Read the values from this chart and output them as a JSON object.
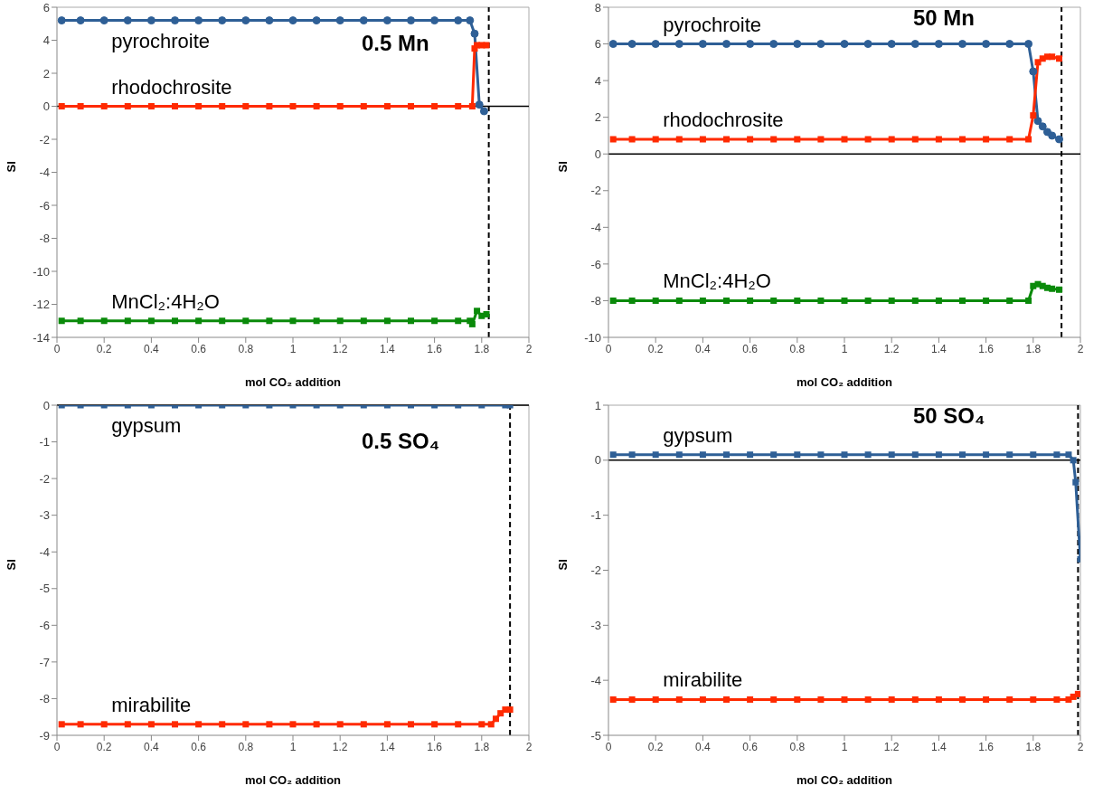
{
  "chart_data": [
    {
      "type": "line",
      "title": "0.5 Mn",
      "xlabel": "mol CO₂ addition",
      "ylabel": "SI",
      "xlim": [
        0,
        2
      ],
      "xticks": [
        0,
        0.2,
        0.4,
        0.6,
        0.8,
        1,
        1.2,
        1.4,
        1.6,
        1.8,
        2
      ],
      "ylim": [
        -14,
        6
      ],
      "yticks": [
        -14,
        -12,
        -10,
        -8,
        -6,
        -4,
        -2,
        0,
        2,
        4,
        6
      ],
      "series": [
        {
          "name": "pyrochroite",
          "color": "#2e5f96",
          "marker": "circle",
          "x": [
            0.02,
            0.1,
            0.2,
            0.3,
            0.4,
            0.5,
            0.6,
            0.7,
            0.8,
            0.9,
            1,
            1.1,
            1.2,
            1.3,
            1.4,
            1.5,
            1.6,
            1.7,
            1.75,
            1.77,
            1.79,
            1.81
          ],
          "values": [
            5.2,
            5.2,
            5.2,
            5.2,
            5.2,
            5.2,
            5.2,
            5.2,
            5.2,
            5.2,
            5.2,
            5.2,
            5.2,
            5.2,
            5.2,
            5.2,
            5.2,
            5.2,
            5.2,
            4.4,
            0.1,
            -0.3
          ]
        },
        {
          "name": "rhodochrosite",
          "color": "#ff2a00",
          "marker": "square",
          "x": [
            0.02,
            0.1,
            0.2,
            0.3,
            0.4,
            0.5,
            0.6,
            0.7,
            0.8,
            0.9,
            1,
            1.1,
            1.2,
            1.3,
            1.4,
            1.5,
            1.6,
            1.7,
            1.76,
            1.77,
            1.78,
            1.8,
            1.82
          ],
          "values": [
            0,
            0,
            0,
            0,
            0,
            0,
            0,
            0,
            0,
            0,
            0,
            0,
            0,
            0,
            0,
            0,
            0,
            0,
            0,
            3.5,
            3.7,
            3.7,
            3.7
          ]
        },
        {
          "name": "MnCl₂:4H₂O",
          "color": "#0a8a0a",
          "marker": "square",
          "x": [
            0.02,
            0.1,
            0.2,
            0.3,
            0.4,
            0.5,
            0.6,
            0.7,
            0.8,
            0.9,
            1,
            1.1,
            1.2,
            1.3,
            1.4,
            1.5,
            1.6,
            1.7,
            1.75,
            1.76,
            1.78,
            1.8,
            1.82
          ],
          "values": [
            -13,
            -13,
            -13,
            -13,
            -13,
            -13,
            -13,
            -13,
            -13,
            -13,
            -13,
            -13,
            -13,
            -13,
            -13,
            -13,
            -13,
            -13,
            -13,
            -13.2,
            -12.4,
            -12.7,
            -12.6
          ]
        }
      ],
      "ref_lines": [
        {
          "axis": "y",
          "value": 0,
          "color": "#000000",
          "line_style": "solid"
        },
        {
          "axis": "x",
          "value": 1.83,
          "color": "#000000",
          "line_style": "dashed"
        }
      ]
    },
    {
      "type": "line",
      "title": "50 Mn",
      "xlabel": "mol CO₂ addition",
      "ylabel": "SI",
      "xlim": [
        0,
        2
      ],
      "xticks": [
        0,
        0.2,
        0.4,
        0.6,
        0.8,
        1,
        1.2,
        1.4,
        1.6,
        1.8,
        2
      ],
      "ylim": [
        -10,
        8
      ],
      "yticks": [
        -10,
        -8,
        -6,
        -4,
        -2,
        0,
        2,
        4,
        6,
        8
      ],
      "series": [
        {
          "name": "pyrochroite",
          "color": "#2e5f96",
          "marker": "circle",
          "x": [
            0.02,
            0.1,
            0.2,
            0.3,
            0.4,
            0.5,
            0.6,
            0.7,
            0.8,
            0.9,
            1,
            1.1,
            1.2,
            1.3,
            1.4,
            1.5,
            1.6,
            1.7,
            1.78,
            1.8,
            1.82,
            1.84,
            1.86,
            1.88,
            1.91
          ],
          "values": [
            6,
            6,
            6,
            6,
            6,
            6,
            6,
            6,
            6,
            6,
            6,
            6,
            6,
            6,
            6,
            6,
            6,
            6,
            6,
            4.5,
            1.8,
            1.5,
            1.2,
            1,
            0.8
          ]
        },
        {
          "name": "rhodochrosite",
          "color": "#ff2a00",
          "marker": "square",
          "x": [
            0.02,
            0.1,
            0.2,
            0.3,
            0.4,
            0.5,
            0.6,
            0.7,
            0.8,
            0.9,
            1,
            1.1,
            1.2,
            1.3,
            1.4,
            1.5,
            1.6,
            1.7,
            1.78,
            1.8,
            1.82,
            1.84,
            1.86,
            1.88,
            1.91
          ],
          "values": [
            0.8,
            0.8,
            0.8,
            0.8,
            0.8,
            0.8,
            0.8,
            0.8,
            0.8,
            0.8,
            0.8,
            0.8,
            0.8,
            0.8,
            0.8,
            0.8,
            0.8,
            0.8,
            0.8,
            2.1,
            5,
            5.2,
            5.3,
            5.3,
            5.2
          ]
        },
        {
          "name": "MnCl₂:4H₂O",
          "color": "#0a8a0a",
          "marker": "square",
          "x": [
            0.02,
            0.1,
            0.2,
            0.3,
            0.4,
            0.5,
            0.6,
            0.7,
            0.8,
            0.9,
            1,
            1.1,
            1.2,
            1.3,
            1.4,
            1.5,
            1.6,
            1.7,
            1.78,
            1.8,
            1.82,
            1.84,
            1.86,
            1.88,
            1.91
          ],
          "values": [
            -8,
            -8,
            -8,
            -8,
            -8,
            -8,
            -8,
            -8,
            -8,
            -8,
            -8,
            -8,
            -8,
            -8,
            -8,
            -8,
            -8,
            -8,
            -8,
            -7.2,
            -7.1,
            -7.2,
            -7.3,
            -7.35,
            -7.4
          ]
        }
      ],
      "ref_lines": [
        {
          "axis": "y",
          "value": 0,
          "color": "#000000",
          "line_style": "solid"
        },
        {
          "axis": "x",
          "value": 1.92,
          "color": "#000000",
          "line_style": "dashed"
        }
      ]
    },
    {
      "type": "line",
      "title": "0.5 SO₄",
      "xlabel": "mol CO₂ addition",
      "ylabel": "SI",
      "xlim": [
        0,
        2
      ],
      "xticks": [
        0,
        0.2,
        0.4,
        0.6,
        0.8,
        1,
        1.2,
        1.4,
        1.6,
        1.8,
        2
      ],
      "ylim": [
        -9,
        0
      ],
      "yticks": [
        -9,
        -8,
        -7,
        -6,
        -5,
        -4,
        -3,
        -2,
        -1,
        0
      ],
      "series": [
        {
          "name": "gypsum",
          "color": "#2e5f96",
          "marker": "square",
          "x": [
            0.02,
            0.1,
            0.2,
            0.3,
            0.4,
            0.5,
            0.6,
            0.7,
            0.8,
            0.9,
            1,
            1.1,
            1.2,
            1.3,
            1.4,
            1.5,
            1.6,
            1.7,
            1.8,
            1.9,
            1.92
          ],
          "values": [
            0,
            0,
            0,
            0,
            0,
            0,
            0,
            0,
            0,
            0,
            0,
            0,
            0,
            0,
            0,
            0,
            0,
            0,
            0,
            0,
            0
          ]
        },
        {
          "name": "mirabilite",
          "color": "#ff2a00",
          "marker": "square",
          "x": [
            0.02,
            0.1,
            0.2,
            0.3,
            0.4,
            0.5,
            0.6,
            0.7,
            0.8,
            0.9,
            1,
            1.1,
            1.2,
            1.3,
            1.4,
            1.5,
            1.6,
            1.7,
            1.8,
            1.84,
            1.86,
            1.88,
            1.9,
            1.92
          ],
          "values": [
            -8.7,
            -8.7,
            -8.7,
            -8.7,
            -8.7,
            -8.7,
            -8.7,
            -8.7,
            -8.7,
            -8.7,
            -8.7,
            -8.7,
            -8.7,
            -8.7,
            -8.7,
            -8.7,
            -8.7,
            -8.7,
            -8.7,
            -8.7,
            -8.55,
            -8.4,
            -8.3,
            -8.3
          ]
        }
      ],
      "ref_lines": [
        {
          "axis": "y",
          "value": 0,
          "color": "#000000",
          "line_style": "solid"
        },
        {
          "axis": "x",
          "value": 1.92,
          "color": "#000000",
          "line_style": "dashed"
        }
      ]
    },
    {
      "type": "line",
      "title": "50 SO₄",
      "xlabel": "mol CO₂ addition",
      "ylabel": "SI",
      "xlim": [
        0,
        2
      ],
      "xticks": [
        0,
        0.2,
        0.4,
        0.6,
        0.8,
        1,
        1.2,
        1.4,
        1.6,
        1.8,
        2
      ],
      "ylim": [
        -5,
        1
      ],
      "yticks": [
        -5,
        -4,
        -3,
        -2,
        -1,
        0,
        1
      ],
      "series": [
        {
          "name": "gypsum",
          "color": "#2e5f96",
          "marker": "square",
          "x": [
            0.02,
            0.1,
            0.2,
            0.3,
            0.4,
            0.5,
            0.6,
            0.7,
            0.8,
            0.9,
            1,
            1.1,
            1.2,
            1.3,
            1.4,
            1.5,
            1.6,
            1.7,
            1.8,
            1.9,
            1.95,
            1.97,
            1.98,
            2
          ],
          "values": [
            0.1,
            0.1,
            0.1,
            0.1,
            0.1,
            0.1,
            0.1,
            0.1,
            0.1,
            0.1,
            0.1,
            0.1,
            0.1,
            0.1,
            0.1,
            0.1,
            0.1,
            0.1,
            0.1,
            0.1,
            0.1,
            0,
            -0.4,
            -1.8
          ]
        },
        {
          "name": "mirabilite",
          "color": "#ff2a00",
          "marker": "square",
          "x": [
            0.02,
            0.1,
            0.2,
            0.3,
            0.4,
            0.5,
            0.6,
            0.7,
            0.8,
            0.9,
            1,
            1.1,
            1.2,
            1.3,
            1.4,
            1.5,
            1.6,
            1.7,
            1.8,
            1.9,
            1.95,
            1.97,
            1.99
          ],
          "values": [
            -4.35,
            -4.35,
            -4.35,
            -4.35,
            -4.35,
            -4.35,
            -4.35,
            -4.35,
            -4.35,
            -4.35,
            -4.35,
            -4.35,
            -4.35,
            -4.35,
            -4.35,
            -4.35,
            -4.35,
            -4.35,
            -4.35,
            -4.35,
            -4.35,
            -4.3,
            -4.25
          ]
        }
      ],
      "ref_lines": [
        {
          "axis": "y",
          "value": 0,
          "color": "#000000",
          "line_style": "solid"
        },
        {
          "axis": "x",
          "value": 1.99,
          "color": "#000000",
          "line_style": "dashed"
        }
      ]
    }
  ]
}
